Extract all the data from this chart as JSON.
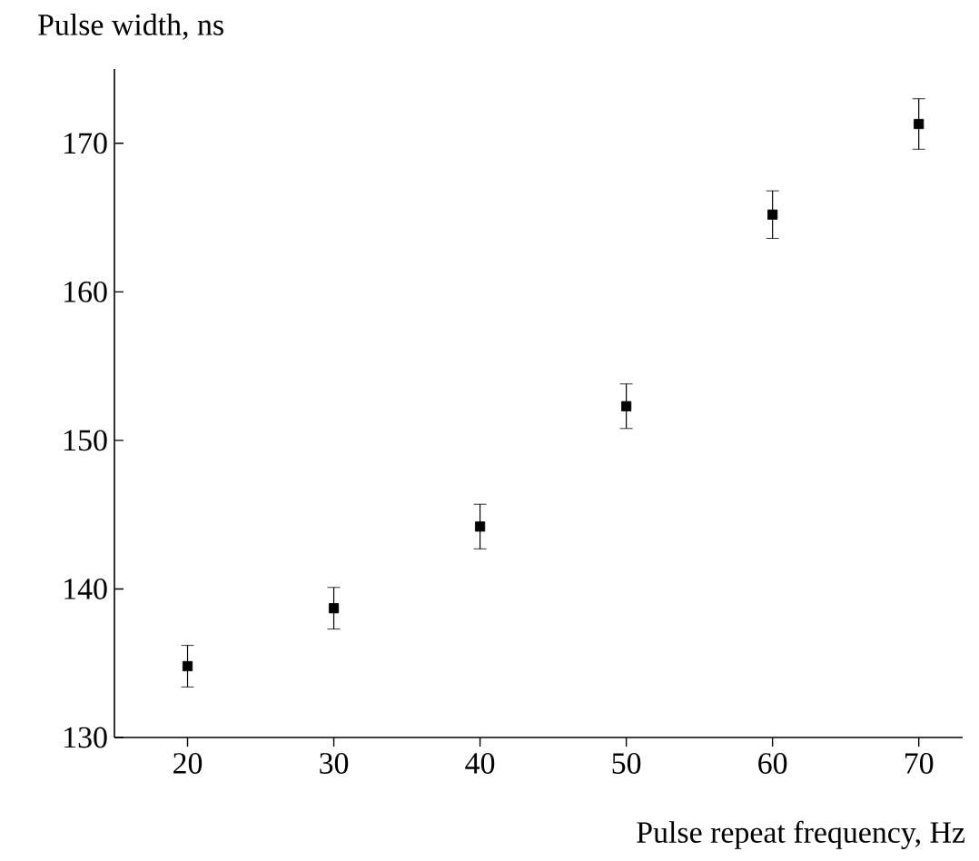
{
  "chart_data": {
    "type": "scatter",
    "ylabel": "Pulse width, ns",
    "xlabel": "Pulse repeat frequency, Hz",
    "x": [
      20,
      30,
      40,
      50,
      60,
      70
    ],
    "values": [
      134.8,
      138.7,
      144.2,
      152.3,
      165.2,
      171.3
    ],
    "errors": [
      1.4,
      1.4,
      1.5,
      1.5,
      1.6,
      1.7
    ],
    "color": "#000000",
    "marker": "square",
    "xlim": [
      15,
      73
    ],
    "ylim": [
      130,
      175
    ],
    "xticks": [
      20,
      30,
      40,
      50,
      60,
      70
    ],
    "yticks": [
      130,
      140,
      150,
      160,
      170
    ]
  }
}
